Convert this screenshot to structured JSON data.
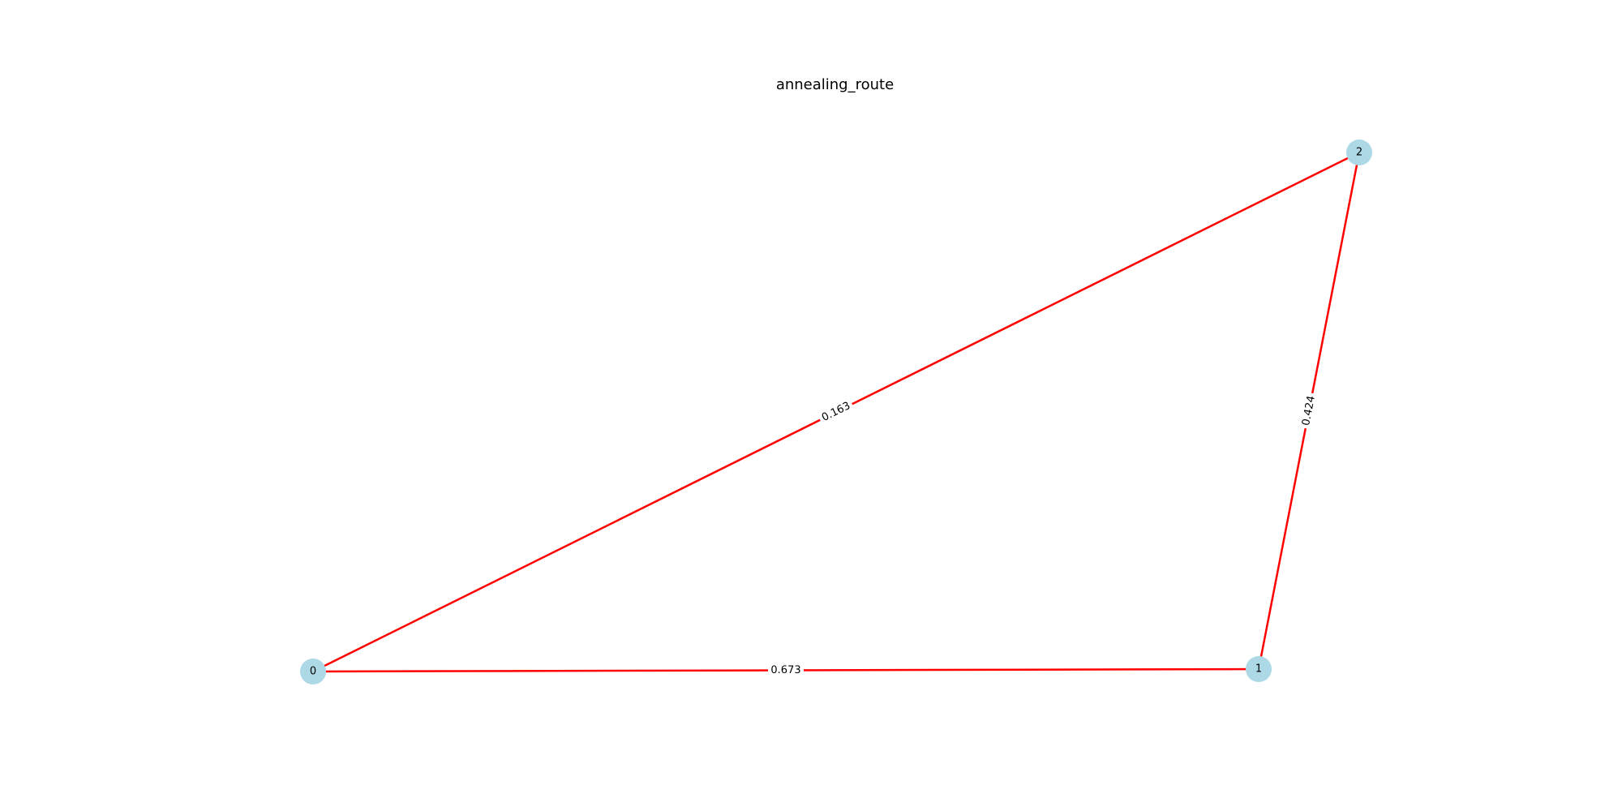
{
  "title": "annealing_route",
  "colors": {
    "edge": "#ff0000",
    "node_fill": "#add8e6",
    "label": "#000000",
    "background": "#ffffff"
  },
  "graph": {
    "nodes": [
      {
        "id": "0",
        "label": "0"
      },
      {
        "id": "1",
        "label": "1"
      },
      {
        "id": "2",
        "label": "2"
      }
    ],
    "edges": [
      {
        "source": "0",
        "target": "2",
        "weight": "0.163"
      },
      {
        "source": "2",
        "target": "1",
        "weight": "0.424"
      },
      {
        "source": "0",
        "target": "1",
        "weight": "0.673"
      }
    ]
  }
}
